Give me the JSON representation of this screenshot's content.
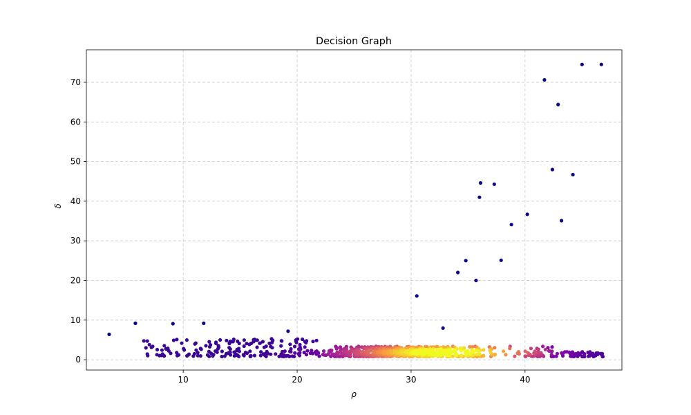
{
  "chart_data": {
    "type": "scatter",
    "title": "Decision Graph",
    "xlabel": "ρ",
    "ylabel": "δ",
    "xlim": [
      1.5,
      48.5
    ],
    "ylim": [
      -2.6,
      78.2
    ],
    "xticks": [
      10,
      20,
      30,
      40
    ],
    "yticks": [
      0,
      10,
      20,
      30,
      40,
      50,
      60,
      70
    ],
    "grid": true,
    "colormap": "plasma",
    "color_encoding": "local point density",
    "outliers": [
      {
        "x": 3.5,
        "y": 6.4
      },
      {
        "x": 5.8,
        "y": 9.2
      },
      {
        "x": 9.1,
        "y": 9.1
      },
      {
        "x": 11.8,
        "y": 9.2
      },
      {
        "x": 19.2,
        "y": 7.2
      },
      {
        "x": 30.5,
        "y": 16.1
      },
      {
        "x": 32.8,
        "y": 8.0
      },
      {
        "x": 34.1,
        "y": 22.0
      },
      {
        "x": 34.8,
        "y": 25.0
      },
      {
        "x": 35.7,
        "y": 20.0
      },
      {
        "x": 36.0,
        "y": 41.0
      },
      {
        "x": 36.1,
        "y": 44.6
      },
      {
        "x": 37.3,
        "y": 44.3
      },
      {
        "x": 37.9,
        "y": 25.1
      },
      {
        "x": 38.8,
        "y": 34.1
      },
      {
        "x": 40.2,
        "y": 36.7
      },
      {
        "x": 41.7,
        "y": 70.6
      },
      {
        "x": 42.4,
        "y": 48.0
      },
      {
        "x": 42.9,
        "y": 64.4
      },
      {
        "x": 43.2,
        "y": 35.1
      },
      {
        "x": 44.2,
        "y": 46.7
      },
      {
        "x": 45.0,
        "y": 74.5
      },
      {
        "x": 46.7,
        "y": 74.5
      }
    ],
    "bulk": {
      "count": 900,
      "x_range": [
        6.5,
        47.0
      ],
      "y_range": [
        0.8,
        6.0
      ],
      "density_peak_x": 33.0,
      "density_peak_y": 1.9
    },
    "colors": {
      "low_density": "#0d0887",
      "mid_density": "#cc4778",
      "high_density": "#f0f921"
    }
  }
}
